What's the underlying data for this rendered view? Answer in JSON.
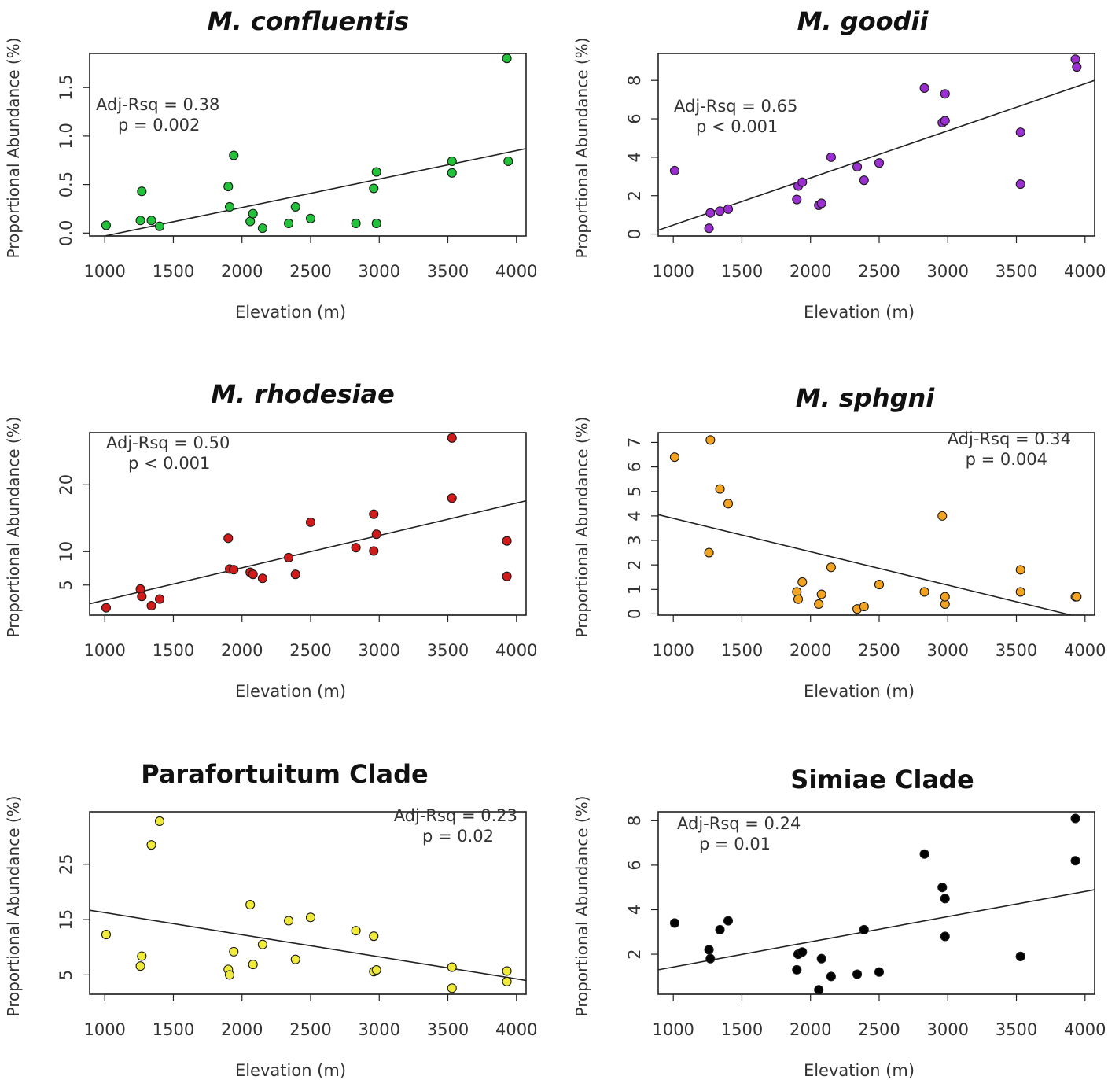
{
  "chart_data": [
    {
      "type": "scatter",
      "title": "M. confluentis",
      "title_italic": true,
      "xlabel": "Elevation (m)",
      "ylabel": "Proportional Abundance (%)",
      "xlim": [
        890,
        4070
      ],
      "ylim": [
        -0.03,
        1.85
      ],
      "xticks": [
        1000,
        1500,
        2000,
        2500,
        3000,
        3500,
        4000
      ],
      "yticks": [
        0.0,
        0.5,
        1.0,
        1.5
      ],
      "ytick_labels": [
        "0.0",
        "0.5",
        "1.0",
        "1.5"
      ],
      "point_color": "#22c33a",
      "annotation": [
        "Adj-Rsq = 0.38",
        "p = 0.002"
      ],
      "annotation_position": "top-left",
      "fit_line": {
        "x": [
          1000,
          4070
        ],
        "y": [
          -0.03,
          0.87
        ]
      },
      "points": [
        {
          "x": 1010,
          "y": 0.08
        },
        {
          "x": 1260,
          "y": 0.13
        },
        {
          "x": 1270,
          "y": 0.43
        },
        {
          "x": 1340,
          "y": 0.13
        },
        {
          "x": 1400,
          "y": 0.07
        },
        {
          "x": 1900,
          "y": 0.48
        },
        {
          "x": 1910,
          "y": 0.27
        },
        {
          "x": 1940,
          "y": 0.8
        },
        {
          "x": 2060,
          "y": 0.12
        },
        {
          "x": 2080,
          "y": 0.2
        },
        {
          "x": 2150,
          "y": 0.05
        },
        {
          "x": 2340,
          "y": 0.1
        },
        {
          "x": 2390,
          "y": 0.27
        },
        {
          "x": 2500,
          "y": 0.15
        },
        {
          "x": 2830,
          "y": 0.1
        },
        {
          "x": 2960,
          "y": 0.46
        },
        {
          "x": 2980,
          "y": 0.1
        },
        {
          "x": 2980,
          "y": 0.63
        },
        {
          "x": 3530,
          "y": 0.74
        },
        {
          "x": 3530,
          "y": 0.62
        },
        {
          "x": 3930,
          "y": 1.8
        },
        {
          "x": 3940,
          "y": 0.74
        }
      ]
    },
    {
      "type": "scatter",
      "title": "M. goodii",
      "title_italic": true,
      "xlabel": "Elevation (m)",
      "ylabel": "Proportional Abundance (%)",
      "xlim": [
        890,
        4070
      ],
      "ylim": [
        -0.1,
        9.4
      ],
      "xticks": [
        1000,
        1500,
        2000,
        2500,
        3000,
        3500,
        4000
      ],
      "yticks": [
        0,
        2,
        4,
        6,
        8
      ],
      "ytick_labels": [
        "0",
        "2",
        "4",
        "6",
        "8"
      ],
      "point_color": "#9b2fd1",
      "annotation": [
        "Adj-Rsq = 0.65",
        "p < 0.001"
      ],
      "annotation_position": "top-left",
      "fit_line": {
        "x": [
          890,
          4070
        ],
        "y": [
          0.2,
          8.0
        ]
      },
      "points": [
        {
          "x": 1010,
          "y": 3.3
        },
        {
          "x": 1260,
          "y": 0.3
        },
        {
          "x": 1270,
          "y": 1.1
        },
        {
          "x": 1340,
          "y": 1.2
        },
        {
          "x": 1400,
          "y": 1.3
        },
        {
          "x": 1900,
          "y": 1.8
        },
        {
          "x": 1910,
          "y": 2.5
        },
        {
          "x": 1940,
          "y": 2.7
        },
        {
          "x": 2060,
          "y": 1.5
        },
        {
          "x": 2080,
          "y": 1.6
        },
        {
          "x": 2150,
          "y": 4.0
        },
        {
          "x": 2340,
          "y": 3.5
        },
        {
          "x": 2390,
          "y": 2.8
        },
        {
          "x": 2500,
          "y": 3.7
        },
        {
          "x": 2830,
          "y": 7.6
        },
        {
          "x": 2960,
          "y": 5.8
        },
        {
          "x": 2980,
          "y": 7.3
        },
        {
          "x": 2980,
          "y": 5.9
        },
        {
          "x": 3530,
          "y": 5.3
        },
        {
          "x": 3530,
          "y": 2.6
        },
        {
          "x": 3930,
          "y": 9.1
        },
        {
          "x": 3940,
          "y": 8.7
        }
      ]
    },
    {
      "type": "scatter",
      "title": "M. rhodesiae",
      "title_italic": true,
      "xlabel": "Elevation (m)",
      "ylabel": "Proportional Abundance (%)",
      "xlim": [
        890,
        4070
      ],
      "ylim": [
        0.5,
        27.8
      ],
      "xticks": [
        1000,
        1500,
        2000,
        2500,
        3000,
        3500,
        4000
      ],
      "yticks": [
        5,
        10,
        20
      ],
      "ytick_labels": [
        "5",
        "10",
        "20"
      ],
      "point_color": "#d11a1a",
      "annotation": [
        "Adj-Rsq = 0.50",
        "p < 0.001"
      ],
      "annotation_position": "top-left",
      "fit_line": {
        "x": [
          890,
          4070
        ],
        "y": [
          2.2,
          17.6
        ]
      },
      "points": [
        {
          "x": 1010,
          "y": 1.6
        },
        {
          "x": 1260,
          "y": 4.4
        },
        {
          "x": 1270,
          "y": 3.3
        },
        {
          "x": 1340,
          "y": 1.9
        },
        {
          "x": 1400,
          "y": 2.9
        },
        {
          "x": 1900,
          "y": 12.0
        },
        {
          "x": 1910,
          "y": 7.4
        },
        {
          "x": 1940,
          "y": 7.3
        },
        {
          "x": 2060,
          "y": 6.9
        },
        {
          "x": 2080,
          "y": 6.6
        },
        {
          "x": 2150,
          "y": 6.0
        },
        {
          "x": 2340,
          "y": 9.1
        },
        {
          "x": 2390,
          "y": 6.6
        },
        {
          "x": 2500,
          "y": 14.4
        },
        {
          "x": 2830,
          "y": 10.6
        },
        {
          "x": 2960,
          "y": 15.6
        },
        {
          "x": 2960,
          "y": 10.1
        },
        {
          "x": 2980,
          "y": 12.6
        },
        {
          "x": 3530,
          "y": 27.0
        },
        {
          "x": 3530,
          "y": 18.0
        },
        {
          "x": 3930,
          "y": 11.6
        },
        {
          "x": 3930,
          "y": 6.3
        }
      ]
    },
    {
      "type": "scatter",
      "title": "M. sphgni",
      "title_italic": true,
      "xlabel": "Elevation (m)",
      "ylabel": "Proportional Abundance (%)",
      "xlim": [
        890,
        4070
      ],
      "ylim": [
        -0.05,
        7.4
      ],
      "xticks": [
        1000,
        1500,
        2000,
        2500,
        3000,
        3500,
        4000
      ],
      "yticks": [
        0,
        1,
        2,
        3,
        4,
        5,
        6,
        7
      ],
      "ytick_labels": [
        "0",
        "1",
        "2",
        "3",
        "4",
        "5",
        "6",
        "7"
      ],
      "point_color": "#f3a31f",
      "annotation": [
        "Adj-Rsq = 0.34",
        "p = 0.004"
      ],
      "annotation_position": "top-right",
      "fit_line": {
        "x": [
          890,
          3900
        ],
        "y": [
          4.05,
          -0.05
        ]
      },
      "points": [
        {
          "x": 1010,
          "y": 6.4
        },
        {
          "x": 1270,
          "y": 7.1
        },
        {
          "x": 1260,
          "y": 2.5
        },
        {
          "x": 1340,
          "y": 5.1
        },
        {
          "x": 1400,
          "y": 4.5
        },
        {
          "x": 1900,
          "y": 0.9
        },
        {
          "x": 1910,
          "y": 0.6
        },
        {
          "x": 1940,
          "y": 1.3
        },
        {
          "x": 2060,
          "y": 0.4
        },
        {
          "x": 2080,
          "y": 0.8
        },
        {
          "x": 2150,
          "y": 1.9
        },
        {
          "x": 2340,
          "y": 0.2
        },
        {
          "x": 2390,
          "y": 0.3
        },
        {
          "x": 2500,
          "y": 1.2
        },
        {
          "x": 2830,
          "y": 0.9
        },
        {
          "x": 2960,
          "y": 4.0
        },
        {
          "x": 2980,
          "y": 0.4
        },
        {
          "x": 2980,
          "y": 0.7
        },
        {
          "x": 3530,
          "y": 1.8
        },
        {
          "x": 3530,
          "y": 0.9
        },
        {
          "x": 3930,
          "y": 0.7
        },
        {
          "x": 3940,
          "y": 0.7
        }
      ]
    },
    {
      "type": "scatter",
      "title": "Parafortuitum Clade",
      "title_italic": false,
      "xlabel": "Elevation (m)",
      "ylabel": "Proportional Abundance (%)",
      "xlim": [
        890,
        4070
      ],
      "ylim": [
        1.5,
        34.5
      ],
      "xticks": [
        1000,
        1500,
        2000,
        2500,
        3000,
        3500,
        4000
      ],
      "yticks": [
        5,
        15,
        25
      ],
      "ytick_labels": [
        "5",
        "15",
        "25"
      ],
      "point_color": "#f0ea3a",
      "annotation": [
        "Adj-Rsq = 0.23",
        "p = 0.02"
      ],
      "annotation_position": "top-right",
      "fit_line": {
        "x": [
          890,
          4070
        ],
        "y": [
          16.7,
          4.0
        ]
      },
      "points": [
        {
          "x": 1010,
          "y": 12.3
        },
        {
          "x": 1260,
          "y": 6.6
        },
        {
          "x": 1270,
          "y": 8.4
        },
        {
          "x": 1340,
          "y": 28.5
        },
        {
          "x": 1400,
          "y": 32.8
        },
        {
          "x": 1900,
          "y": 6.0
        },
        {
          "x": 1910,
          "y": 5.0
        },
        {
          "x": 1940,
          "y": 9.2
        },
        {
          "x": 2060,
          "y": 17.7
        },
        {
          "x": 2080,
          "y": 6.9
        },
        {
          "x": 2150,
          "y": 10.5
        },
        {
          "x": 2340,
          "y": 14.8
        },
        {
          "x": 2390,
          "y": 7.8
        },
        {
          "x": 2500,
          "y": 15.4
        },
        {
          "x": 2830,
          "y": 13.0
        },
        {
          "x": 2960,
          "y": 5.6
        },
        {
          "x": 2960,
          "y": 12.0
        },
        {
          "x": 2980,
          "y": 5.9
        },
        {
          "x": 3530,
          "y": 6.4
        },
        {
          "x": 3530,
          "y": 2.6
        },
        {
          "x": 3930,
          "y": 5.7
        },
        {
          "x": 3930,
          "y": 3.8
        }
      ]
    },
    {
      "type": "scatter",
      "title": "Simiae Clade",
      "title_italic": false,
      "xlabel": "Elevation (m)",
      "ylabel": "Proportional Abundance (%)",
      "xlim": [
        890,
        4070
      ],
      "ylim": [
        0.2,
        8.4
      ],
      "xticks": [
        1000,
        1500,
        2000,
        2500,
        3000,
        3500,
        4000
      ],
      "yticks": [
        2,
        4,
        6,
        8
      ],
      "ytick_labels": [
        "2",
        "4",
        "6",
        "8"
      ],
      "point_color": "#000000",
      "annotation": [
        "Adj-Rsq = 0.24",
        "p = 0.01"
      ],
      "annotation_position": "top-left",
      "fit_line": {
        "x": [
          890,
          4070
        ],
        "y": [
          1.3,
          4.9
        ]
      },
      "points": [
        {
          "x": 1010,
          "y": 3.4
        },
        {
          "x": 1260,
          "y": 2.2
        },
        {
          "x": 1270,
          "y": 1.8
        },
        {
          "x": 1340,
          "y": 3.1
        },
        {
          "x": 1400,
          "y": 3.5
        },
        {
          "x": 1900,
          "y": 1.3
        },
        {
          "x": 1910,
          "y": 2.0
        },
        {
          "x": 1940,
          "y": 2.1
        },
        {
          "x": 2060,
          "y": 0.4
        },
        {
          "x": 2080,
          "y": 1.8
        },
        {
          "x": 2150,
          "y": 1.0
        },
        {
          "x": 2340,
          "y": 1.1
        },
        {
          "x": 2390,
          "y": 3.1
        },
        {
          "x": 2500,
          "y": 1.2
        },
        {
          "x": 2830,
          "y": 6.5
        },
        {
          "x": 2960,
          "y": 5.0
        },
        {
          "x": 2980,
          "y": 4.5
        },
        {
          "x": 2980,
          "y": 2.8
        },
        {
          "x": 3530,
          "y": 1.9
        },
        {
          "x": 3530,
          "y": 1.9
        },
        {
          "x": 3930,
          "y": 8.1
        },
        {
          "x": 3930,
          "y": 6.2
        }
      ]
    }
  ]
}
